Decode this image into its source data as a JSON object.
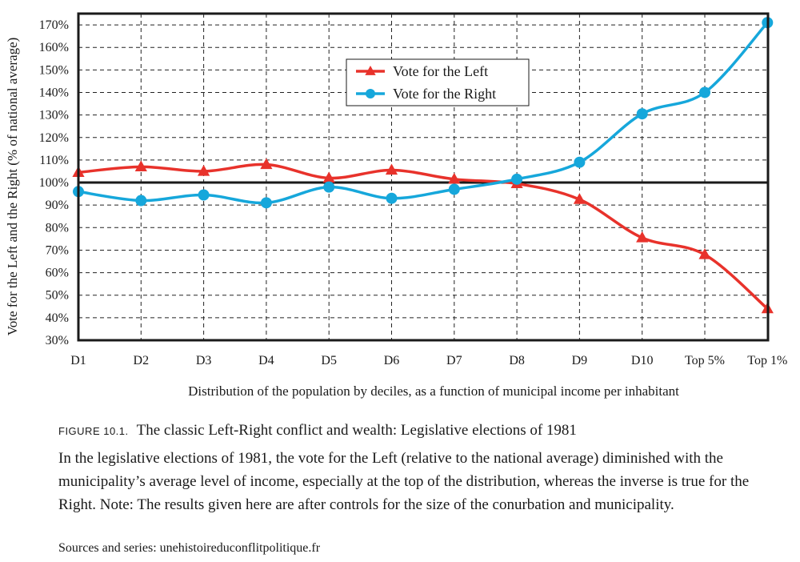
{
  "chart_data": {
    "type": "line",
    "categories": [
      "D1",
      "D2",
      "D3",
      "D4",
      "D5",
      "D6",
      "D7",
      "D8",
      "D9",
      "D10",
      "Top 5%",
      "Top 1%"
    ],
    "series": [
      {
        "name": "Vote for the Left",
        "color": "#e8322b",
        "marker": "triangle",
        "values": [
          104.5,
          107,
          105,
          108,
          102,
          105.5,
          101.5,
          99.5,
          92.5,
          75.5,
          68,
          44
        ]
      },
      {
        "name": "Vote for the Right",
        "color": "#16a7db",
        "marker": "circle",
        "values": [
          96,
          92,
          94.5,
          91,
          98,
          93,
          97,
          101.5,
          109,
          130.5,
          140,
          171
        ]
      }
    ],
    "ylabel": "Vote for the Left and the Right (% of national average)",
    "xlabel": "Distribution of the population by deciles, as a function of municipal income per inhabitant",
    "ylim": [
      30,
      175
    ],
    "yticks": [
      30,
      40,
      50,
      60,
      70,
      80,
      90,
      100,
      110,
      120,
      130,
      140,
      150,
      160,
      170
    ],
    "ytick_suffix": "%",
    "reference_line": 100,
    "grid": true,
    "grid_style": "dashed",
    "legend_position": "top-center"
  },
  "caption": {
    "figure_label": "FIGURE 10.1.",
    "title": "The classic Left-Right conflict and wealth: Legislative elections of 1981",
    "body": "In the legislative elections of 1981, the vote for the Left (relative to the national average) diminished with the municipality’s average level of income, especially at the top of the distribution, whereas the inverse is true for the Right. Note: The results given here are after controls for the size of the conurbation and municipality.",
    "source": "Sources and series: unehistoireduconflitpolitique.fr"
  }
}
